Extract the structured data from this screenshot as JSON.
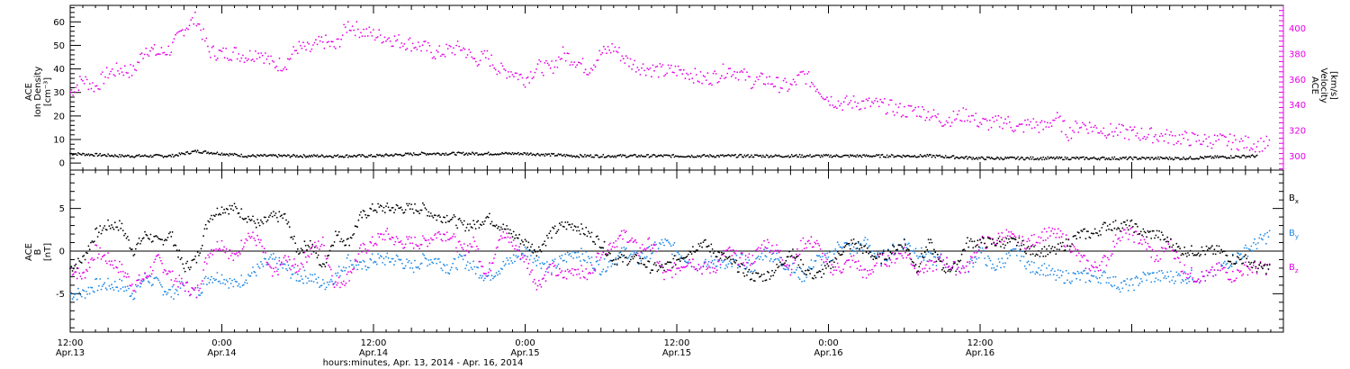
{
  "chart_data": [
    {
      "type": "scatter",
      "panel": "ion-density-velocity",
      "ylabel_lines": [
        "ACE",
        "Ion Density",
        "[cm⁻³]"
      ],
      "y_ticks": [
        "0",
        "10",
        "20",
        "30",
        "40",
        "50",
        "60"
      ],
      "ylim": [
        -3,
        67
      ],
      "y2label_lines": [
        "ACE",
        "Velocity",
        "[km/s]"
      ],
      "y2_ticks": [
        "300",
        "320",
        "340",
        "360",
        "380",
        "400"
      ],
      "y2lim": [
        289,
        418
      ],
      "colors": {
        "density": "#000000",
        "velocity": "#e600e6"
      },
      "series": [
        {
          "axis": "left",
          "color": "#000000",
          "x": [
            0,
            4,
            8,
            10,
            14,
            20,
            24,
            28,
            32,
            36,
            40,
            44,
            48,
            52,
            56,
            60,
            64,
            68,
            72,
            76,
            80,
            84,
            88,
            94
          ],
          "values": [
            4,
            3,
            3,
            5,
            3,
            3,
            3,
            4,
            4,
            4,
            3,
            3,
            3,
            3,
            3,
            3,
            3,
            3,
            2,
            2,
            2,
            2,
            2,
            3
          ]
        },
        {
          "axis": "right",
          "color": "#e600e6",
          "x": [
            0,
            1,
            2,
            3,
            4,
            5,
            6,
            7,
            8,
            9,
            10,
            11,
            12,
            13,
            14,
            15,
            16,
            17,
            18,
            19,
            20,
            21,
            22,
            23,
            24,
            25,
            26,
            27,
            28,
            29,
            30,
            31,
            32,
            33,
            34,
            35,
            36,
            37,
            38,
            39,
            40,
            41,
            42,
            43,
            44,
            45,
            46,
            47,
            48,
            49,
            50,
            51,
            52,
            53,
            54,
            55,
            56,
            57,
            58,
            59,
            60,
            61,
            62,
            63,
            64,
            65,
            66,
            67,
            68,
            69,
            70,
            71,
            72,
            73,
            74,
            75,
            76,
            77,
            78,
            79,
            80,
            81,
            82,
            83,
            84,
            85,
            86,
            87,
            88,
            89,
            90,
            91,
            92,
            93,
            94,
            95
          ],
          "values": [
            350,
            360,
            354,
            365,
            368,
            366,
            385,
            380,
            384,
            400,
            408,
            382,
            380,
            381,
            378,
            382,
            372,
            372,
            385,
            383,
            390,
            385,
            403,
            398,
            395,
            393,
            390,
            388,
            385,
            380,
            383,
            385,
            375,
            378,
            367,
            366,
            360,
            370,
            368,
            380,
            375,
            368,
            380,
            385,
            375,
            370,
            368,
            366,
            367,
            365,
            360,
            362,
            368,
            365,
            358,
            360,
            356,
            354,
            364,
            355,
            345,
            341,
            342,
            341,
            340,
            338,
            335,
            336,
            333,
            328,
            330,
            333,
            326,
            325,
            328,
            321,
            326,
            322,
            330,
            318,
            325,
            322,
            320,
            319,
            318,
            317,
            316,
            315,
            314,
            313,
            312,
            312,
            311,
            310,
            309,
            310
          ]
        }
      ]
    },
    {
      "type": "scatter",
      "panel": "imf-components",
      "ylabel_lines": [
        "ACE",
        "B",
        "[nT]"
      ],
      "y_ticks": [
        "-5",
        "0",
        "5"
      ],
      "ylim": [
        -9.5,
        9.5
      ],
      "legend": [
        {
          "label": "B",
          "sub": "x",
          "color": "#000000"
        },
        {
          "label": "B",
          "sub": "y",
          "color": "#1e88e5"
        },
        {
          "label": "B",
          "sub": "z",
          "color": "#e600e6"
        }
      ],
      "series": [
        {
          "color": "#000000",
          "x": [
            0,
            1,
            2,
            3,
            4,
            5,
            6,
            7,
            8,
            9,
            10,
            11,
            12,
            13,
            14,
            15,
            16,
            17,
            18,
            19,
            20,
            21,
            22,
            23,
            24,
            25,
            26,
            27,
            28,
            29,
            30,
            31,
            32,
            33,
            34,
            35,
            36,
            37,
            38,
            39,
            40,
            41,
            42,
            43,
            44,
            45,
            46,
            47,
            48,
            49,
            50,
            51,
            52,
            53,
            54,
            55,
            56,
            57,
            58,
            59,
            60,
            61,
            62,
            63,
            64,
            65,
            66,
            67,
            68,
            69,
            70,
            71,
            72,
            73,
            74,
            75,
            76,
            77,
            78,
            79,
            80,
            81,
            82,
            83,
            84,
            85,
            86,
            87,
            88,
            89,
            90,
            91,
            92,
            93,
            94,
            95
          ],
          "values": [
            -2,
            -1,
            2,
            3,
            3,
            0,
            2,
            1,
            2,
            -2,
            -1,
            4,
            5,
            5,
            4,
            3,
            4,
            4,
            0,
            1,
            -2,
            2,
            1,
            4,
            5,
            5,
            5,
            5,
            5,
            4,
            4,
            3,
            3,
            4,
            3,
            2,
            1,
            0,
            2,
            3,
            3,
            2,
            1,
            -1,
            -1,
            -1,
            -2,
            -2,
            -1,
            0,
            1,
            0,
            -1,
            -2,
            -3,
            -3,
            -2,
            0,
            -2,
            -3,
            -2,
            0,
            1,
            0,
            -1,
            0,
            1,
            -2,
            1,
            -2,
            -2,
            1,
            1,
            1,
            1,
            1,
            0,
            0,
            0,
            1,
            2,
            2,
            3,
            3,
            3,
            2,
            2,
            1,
            0,
            0,
            0,
            0,
            -1,
            -1,
            -2,
            -2
          ]
        },
        {
          "color": "#1e88e5",
          "x": [
            0,
            1,
            2,
            3,
            4,
            5,
            6,
            7,
            8,
            9,
            10,
            11,
            12,
            13,
            14,
            15,
            16,
            17,
            18,
            19,
            20,
            21,
            22,
            23,
            24,
            25,
            26,
            27,
            28,
            29,
            30,
            31,
            32,
            33,
            34,
            35,
            36,
            37,
            38,
            39,
            40,
            41,
            42,
            43,
            44,
            45,
            46,
            47,
            48,
            49,
            50,
            51,
            52,
            53,
            54,
            55,
            56,
            57,
            58,
            59,
            60,
            61,
            62,
            63,
            64,
            65,
            66,
            67,
            68,
            69,
            70,
            71,
            72,
            73,
            74,
            75,
            76,
            77,
            78,
            79,
            80,
            81,
            82,
            83,
            84,
            85,
            86,
            87,
            88,
            89,
            90,
            91,
            92,
            93,
            94,
            95
          ],
          "values": [
            -5,
            -5,
            -4,
            -4,
            -4,
            -5,
            -3,
            -4,
            -5,
            -4,
            -5,
            -3,
            -3,
            -4,
            -3,
            -2,
            -1,
            -2,
            -3,
            -3,
            -4,
            -3,
            -1,
            -2,
            -1,
            -1,
            -1,
            -2,
            -1,
            -1,
            -2,
            -1,
            -2,
            -3,
            -2,
            -1,
            0,
            -1,
            -2,
            -1,
            0,
            -1,
            -2,
            -1,
            0,
            -1,
            0,
            1,
            0,
            -1,
            -2,
            -1,
            -2,
            -1,
            -2,
            0,
            -1,
            -2,
            -3,
            -1,
            -1,
            1,
            0,
            1,
            -1,
            0,
            1,
            0,
            -1,
            -1,
            -2,
            -2,
            0,
            -2,
            -1,
            0,
            -2,
            -2,
            -3,
            -3,
            -3,
            -3,
            -3,
            -4,
            -4,
            -3,
            -3,
            -3,
            -3,
            -3,
            -3,
            -2,
            -1,
            0,
            1,
            2
          ]
        },
        {
          "color": "#e600e6",
          "x": [
            0,
            1,
            2,
            3,
            4,
            5,
            6,
            7,
            8,
            9,
            10,
            11,
            12,
            13,
            14,
            15,
            16,
            17,
            18,
            19,
            20,
            21,
            22,
            23,
            24,
            25,
            26,
            27,
            28,
            29,
            30,
            31,
            32,
            33,
            34,
            35,
            36,
            37,
            38,
            39,
            40,
            41,
            42,
            43,
            44,
            45,
            46,
            47,
            48,
            49,
            50,
            51,
            52,
            53,
            54,
            55,
            56,
            57,
            58,
            59,
            60,
            61,
            62,
            63,
            64,
            65,
            66,
            67,
            68,
            69,
            70,
            71,
            72,
            73,
            74,
            75,
            76,
            77,
            78,
            79,
            80,
            81,
            82,
            83,
            84,
            85,
            86,
            87,
            88,
            89,
            90,
            91,
            92,
            93,
            94,
            95
          ],
          "values": [
            -2,
            -3,
            0,
            -1,
            -2,
            -4,
            -3,
            -1,
            -3,
            -4,
            -5,
            0,
            1,
            -1,
            2,
            1,
            -3,
            -1,
            -2,
            0,
            1,
            -4,
            -3,
            0,
            1,
            2,
            1,
            1,
            1,
            2,
            2,
            0,
            1,
            -3,
            2,
            1,
            -1,
            -4,
            -2,
            -3,
            -2,
            -3,
            0,
            1,
            2,
            0,
            1,
            -3,
            -2,
            -1,
            -2,
            -2,
            0,
            -1,
            -1,
            1,
            0,
            -2,
            1,
            1,
            -2,
            -2,
            -1,
            -3,
            -1,
            -1,
            0,
            -2,
            -2,
            -1,
            -2,
            -2,
            1,
            1,
            2,
            1,
            1,
            2,
            2,
            1,
            -1,
            -2,
            -1,
            2,
            2,
            1,
            -1,
            1,
            -2,
            -3,
            -3,
            -2,
            -3,
            -2,
            -2,
            -2
          ]
        }
      ]
    }
  ],
  "x_axis": {
    "xlabel": "hours:minutes, Apr. 13, 2014 - Apr. 16, 2014",
    "xlim": [
      0,
      96
    ],
    "ticks": [
      {
        "t": 0,
        "time": "12:00",
        "date": "Apr.13"
      },
      {
        "t": 12,
        "time": "0:00",
        "date": "Apr.14"
      },
      {
        "t": 24,
        "time": "12:00",
        "date": "Apr.14"
      },
      {
        "t": 36,
        "time": "0:00",
        "date": "Apr.15"
      },
      {
        "t": 48,
        "time": "12:00",
        "date": "Apr.15"
      },
      {
        "t": 60,
        "time": "0:00",
        "date": "Apr.16"
      },
      {
        "t": 72,
        "time": "12:00",
        "date": "Apr.16"
      }
    ]
  }
}
